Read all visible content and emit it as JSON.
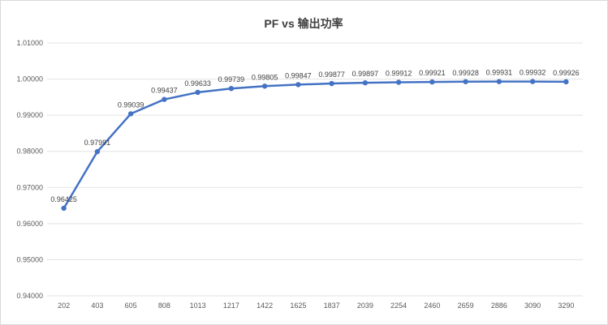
{
  "chart_data": {
    "type": "line",
    "title": "PF vs 输出功率",
    "xlabel": "",
    "ylabel": "",
    "categories": [
      "202",
      "403",
      "605",
      "808",
      "1013",
      "1217",
      "1422",
      "1625",
      "1837",
      "2039",
      "2254",
      "2460",
      "2659",
      "2886",
      "3090",
      "3290"
    ],
    "series": [
      {
        "values": [
          0.96425,
          0.97991,
          0.99039,
          0.99437,
          0.99633,
          0.99739,
          0.99805,
          0.99847,
          0.99877,
          0.99897,
          0.99912,
          0.99921,
          0.99928,
          0.99931,
          0.99932,
          0.99926
        ],
        "labels": [
          "0.96425",
          "0.97991",
          "0.99039",
          "0.99437",
          "0.99633",
          "0.99739",
          "0.99805",
          "0.99847",
          "0.99877",
          "0.99897",
          "0.99912",
          "0.99921",
          "0.99928",
          "0.99931",
          "0.99932",
          "0.99926"
        ]
      }
    ],
    "yticks": [
      "0.94000",
      "0.95000",
      "0.96000",
      "0.97000",
      "0.98000",
      "0.99000",
      "1.00000",
      "1.01000"
    ],
    "ylim": [
      0.94,
      1.01
    ],
    "grid": true,
    "legend": "none",
    "line_color": "#4472c4"
  }
}
